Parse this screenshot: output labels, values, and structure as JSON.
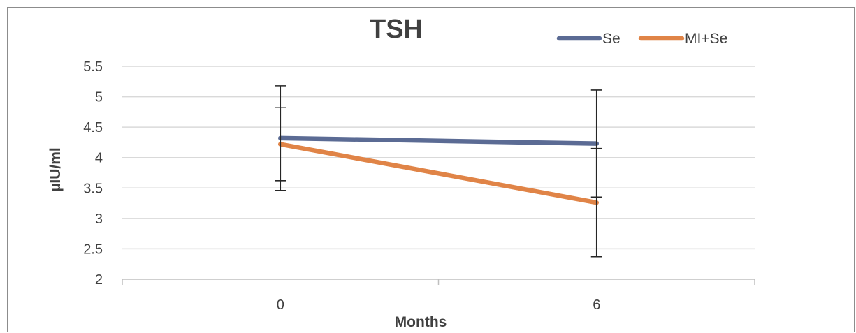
{
  "chart_data": {
    "type": "line",
    "title": "TSH",
    "xlabel": "Months",
    "ylabel": "µIU/ml",
    "categories": [
      "0",
      "6"
    ],
    "ylim": [
      2,
      5.5
    ],
    "yticks": [
      "2",
      "2.5",
      "3",
      "3.5",
      "4",
      "4.5",
      "5",
      "5.5"
    ],
    "grid": true,
    "legend_position": "top-right",
    "series": [
      {
        "name": "Se",
        "color": "#5b6b94",
        "values": [
          4.32,
          4.23
        ],
        "error": [
          0.86,
          0.88
        ]
      },
      {
        "name": "MI+Se",
        "color": "#e08447",
        "values": [
          4.22,
          3.26
        ],
        "error": [
          0.6,
          0.89
        ]
      }
    ]
  }
}
